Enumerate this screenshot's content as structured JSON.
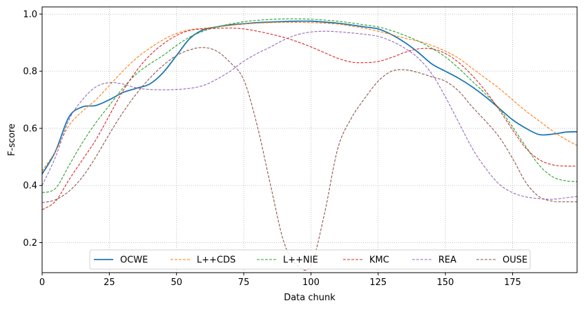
{
  "chart_data": {
    "type": "line",
    "title": "",
    "xlabel": "Data chunk",
    "ylabel": "F-score",
    "xlim": [
      0,
      199
    ],
    "ylim": [
      0.095,
      1.025
    ],
    "x_ticks": [
      0,
      25,
      50,
      75,
      100,
      125,
      150,
      175
    ],
    "y_ticks": [
      0.2,
      0.4,
      0.6,
      0.8,
      1.0
    ],
    "x_tick_labels": [
      "0",
      "25",
      "50",
      "75",
      "100",
      "125",
      "150",
      "175"
    ],
    "y_tick_labels": [
      "0.2",
      "0.4",
      "0.6",
      "0.8",
      "1.0"
    ],
    "grid": true,
    "legend_position": "bottom-center",
    "x": [
      0,
      5,
      10,
      15,
      20,
      25,
      30,
      35,
      40,
      45,
      50,
      55,
      60,
      65,
      70,
      75,
      80,
      85,
      90,
      95,
      100,
      105,
      110,
      115,
      120,
      125,
      130,
      135,
      140,
      145,
      150,
      155,
      160,
      165,
      170,
      175,
      180,
      185,
      190,
      195,
      199
    ],
    "series": [
      {
        "name": "OCWE",
        "color": "#1f77b4",
        "style": "solid",
        "values": [
          0.44,
          0.52,
          0.64,
          0.675,
          0.68,
          0.7,
          0.725,
          0.74,
          0.755,
          0.795,
          0.855,
          0.915,
          0.945,
          0.955,
          0.962,
          0.966,
          0.97,
          0.972,
          0.974,
          0.975,
          0.975,
          0.972,
          0.968,
          0.962,
          0.955,
          0.948,
          0.928,
          0.9,
          0.865,
          0.825,
          0.8,
          0.775,
          0.745,
          0.71,
          0.67,
          0.63,
          0.6,
          0.578,
          0.58,
          0.587,
          0.588
        ]
      },
      {
        "name": "L++CDS",
        "color": "#ff7f0e",
        "style": "dashed",
        "values": [
          0.45,
          0.52,
          0.61,
          0.66,
          0.7,
          0.75,
          0.8,
          0.845,
          0.88,
          0.91,
          0.932,
          0.945,
          0.95,
          0.955,
          0.96,
          0.965,
          0.968,
          0.97,
          0.971,
          0.971,
          0.97,
          0.968,
          0.965,
          0.958,
          0.95,
          0.94,
          0.928,
          0.915,
          0.905,
          0.89,
          0.87,
          0.845,
          0.81,
          0.775,
          0.74,
          0.7,
          0.66,
          0.625,
          0.59,
          0.56,
          0.54
        ]
      },
      {
        "name": "L++NIE",
        "color": "#2ca02c",
        "style": "dashed",
        "values": [
          0.375,
          0.39,
          0.47,
          0.55,
          0.62,
          0.68,
          0.74,
          0.79,
          0.825,
          0.855,
          0.89,
          0.92,
          0.94,
          0.955,
          0.965,
          0.973,
          0.978,
          0.981,
          0.983,
          0.983,
          0.982,
          0.979,
          0.975,
          0.969,
          0.962,
          0.955,
          0.942,
          0.925,
          0.905,
          0.88,
          0.85,
          0.81,
          0.765,
          0.72,
          0.67,
          0.605,
          0.535,
          0.47,
          0.43,
          0.416,
          0.414
        ]
      },
      {
        "name": "KMC",
        "color": "#d62728",
        "style": "dashed",
        "values": [
          0.315,
          0.345,
          0.42,
          0.49,
          0.56,
          0.645,
          0.73,
          0.8,
          0.855,
          0.895,
          0.925,
          0.943,
          0.948,
          0.95,
          0.951,
          0.948,
          0.94,
          0.93,
          0.918,
          0.903,
          0.885,
          0.865,
          0.845,
          0.832,
          0.83,
          0.834,
          0.848,
          0.866,
          0.878,
          0.878,
          0.862,
          0.83,
          0.785,
          0.73,
          0.665,
          0.595,
          0.53,
          0.49,
          0.472,
          0.468,
          0.468
        ]
      },
      {
        "name": "REA",
        "color": "#9467bd",
        "style": "dashed",
        "values": [
          0.4,
          0.5,
          0.63,
          0.7,
          0.745,
          0.76,
          0.755,
          0.742,
          0.736,
          0.735,
          0.736,
          0.74,
          0.75,
          0.772,
          0.8,
          0.835,
          0.862,
          0.885,
          0.91,
          0.928,
          0.937,
          0.94,
          0.938,
          0.934,
          0.929,
          0.922,
          0.905,
          0.88,
          0.845,
          0.79,
          0.71,
          0.62,
          0.53,
          0.46,
          0.405,
          0.375,
          0.36,
          0.354,
          0.352,
          0.357,
          0.362
        ]
      },
      {
        "name": "OUSE",
        "color": "#8c564b",
        "style": "dashed",
        "values": [
          0.34,
          0.35,
          0.38,
          0.43,
          0.5,
          0.58,
          0.655,
          0.72,
          0.775,
          0.82,
          0.855,
          0.875,
          0.883,
          0.87,
          0.83,
          0.77,
          0.61,
          0.4,
          0.2,
          0.12,
          0.12,
          0.3,
          0.53,
          0.635,
          0.705,
          0.765,
          0.8,
          0.805,
          0.795,
          0.78,
          0.765,
          0.73,
          0.675,
          0.625,
          0.57,
          0.495,
          0.41,
          0.36,
          0.345,
          0.343,
          0.343
        ]
      }
    ]
  }
}
